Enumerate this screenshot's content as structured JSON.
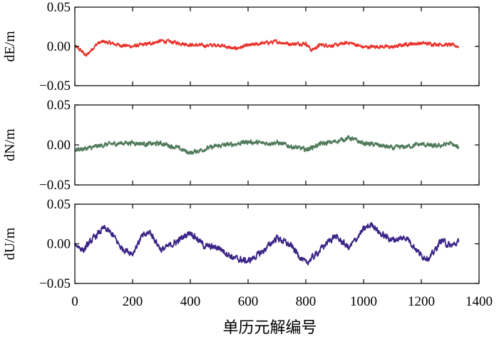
{
  "chart_data": {
    "type": "line",
    "xlabel": "单历元解编号",
    "xlim": [
      0,
      1400
    ],
    "x_ticks": [
      0,
      200,
      400,
      600,
      800,
      1000,
      1200,
      1400
    ],
    "x_tick_labels": [
      "0",
      "200",
      "400",
      "600",
      "800",
      "1000",
      "1200",
      "1400"
    ],
    "n_points": 1330,
    "panels": [
      {
        "id": "dE",
        "ylabel": "dE/m",
        "ylim": [
          -0.05,
          0.05
        ],
        "y_ticks": [
          -0.05,
          0.0,
          0.05
        ],
        "y_tick_labels": [
          "−0.05",
          "0.00",
          "0.05"
        ],
        "color": "#e8312a",
        "series": [
          {
            "name": "dE",
            "x": [
              0,
              20,
              40,
              60,
              80,
              100,
              150,
              200,
              250,
              300,
              350,
              400,
              450,
              500,
              550,
              600,
              650,
              700,
              750,
              800,
              820,
              850,
              900,
              950,
              1000,
              1050,
              1100,
              1150,
              1200,
              1250,
              1300,
              1330
            ],
            "values": [
              0.0,
              -0.005,
              -0.012,
              -0.003,
              0.004,
              0.006,
              0.002,
              0.0,
              0.003,
              0.007,
              0.005,
              0.002,
              0.001,
              0.002,
              -0.003,
              0.001,
              0.004,
              0.006,
              0.003,
              0.004,
              -0.005,
              0.002,
              0.001,
              0.005,
              -0.001,
              0.0,
              -0.001,
              0.003,
              0.004,
              0.003,
              0.002,
              0.0
            ],
            "noise": 0.004
          }
        ]
      },
      {
        "id": "dN",
        "ylabel": "dN/m",
        "ylim": [
          -0.05,
          0.05
        ],
        "y_ticks": [
          -0.05,
          0.0,
          0.05
        ],
        "y_tick_labels": [
          "−0.05",
          "0.00",
          "0.05"
        ],
        "color": "#4f7a5a",
        "series": [
          {
            "name": "dN",
            "x": [
              0,
              50,
              100,
              150,
              200,
              250,
              300,
              350,
              400,
              450,
              500,
              550,
              600,
              650,
              700,
              750,
              800,
              850,
              900,
              950,
              1000,
              1050,
              1100,
              1150,
              1200,
              1250,
              1300,
              1330
            ],
            "values": [
              -0.006,
              -0.004,
              0.0,
              0.002,
              0.003,
              0.001,
              0.002,
              -0.003,
              -0.01,
              -0.005,
              -0.001,
              0.001,
              0.004,
              0.002,
              0.003,
              -0.002,
              -0.006,
              0.001,
              0.004,
              0.009,
              0.002,
              0.0,
              -0.004,
              -0.002,
              0.001,
              -0.002,
              0.002,
              -0.004
            ],
            "noise": 0.005
          }
        ]
      },
      {
        "id": "dU",
        "ylabel": "dU/m",
        "ylim": [
          -0.05,
          0.05
        ],
        "y_ticks": [
          -0.05,
          0.0,
          0.05
        ],
        "y_tick_labels": [
          "−0.05",
          "0.00",
          "0.05"
        ],
        "color": "#3a2486",
        "series": [
          {
            "name": "dU",
            "x": [
              0,
              30,
              60,
              100,
              130,
              160,
              200,
              230,
              260,
              300,
              350,
              400,
              450,
              500,
              550,
              600,
              650,
              700,
              750,
              800,
              830,
              870,
              900,
              950,
              1000,
              1030,
              1060,
              1100,
              1150,
              1200,
              1230,
              1270,
              1300,
              1330
            ],
            "values": [
              0.0,
              -0.008,
              0.005,
              0.02,
              0.012,
              -0.005,
              -0.012,
              0.008,
              0.015,
              -0.008,
              0.002,
              0.015,
              -0.003,
              -0.005,
              -0.018,
              -0.022,
              -0.01,
              0.008,
              -0.003,
              -0.025,
              -0.015,
              0.0,
              0.01,
              -0.005,
              0.018,
              0.025,
              0.012,
              0.005,
              0.008,
              -0.015,
              -0.018,
              0.005,
              -0.003,
              0.002
            ],
            "noise": 0.007
          }
        ]
      }
    ]
  }
}
